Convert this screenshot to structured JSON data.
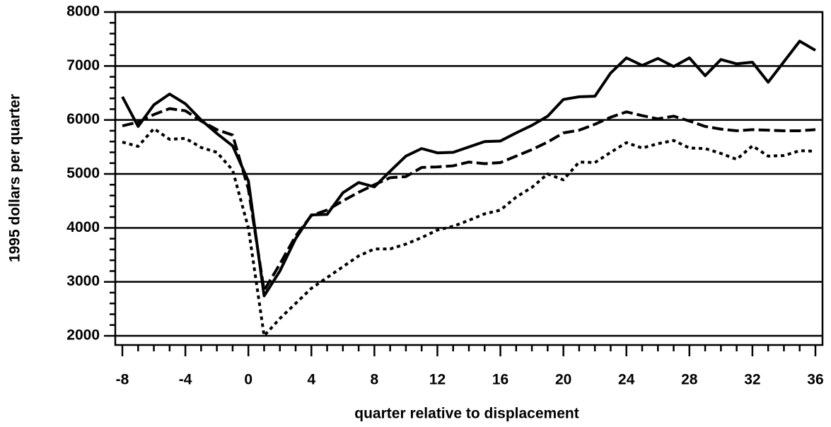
{
  "chart_data": {
    "type": "line",
    "xlabel": "quarter relative to displacement",
    "ylabel": "1995 dollars per quarter",
    "x": [
      -8,
      -7,
      -6,
      -5,
      -4,
      -3,
      -2,
      -1,
      0,
      1,
      2,
      3,
      4,
      5,
      6,
      7,
      8,
      9,
      10,
      11,
      12,
      13,
      14,
      15,
      16,
      17,
      18,
      19,
      20,
      21,
      22,
      23,
      24,
      25,
      26,
      27,
      28,
      29,
      30,
      31,
      32,
      33,
      34,
      35,
      36
    ],
    "series": [
      {
        "color": "#000000",
        "dash": "solid",
        "values": [
          6430,
          5880,
          6280,
          6480,
          6300,
          6000,
          5750,
          5520,
          4870,
          2740,
          3200,
          3800,
          4240,
          4250,
          4650,
          4840,
          4760,
          5050,
          5330,
          5470,
          5390,
          5400,
          5500,
          5600,
          5610,
          5760,
          5900,
          6070,
          6380,
          6430,
          6440,
          6870,
          7150,
          7010,
          7140,
          6990,
          7150,
          6820,
          7120,
          7040,
          7070,
          6700,
          7080,
          7460,
          7290
        ]
      },
      {
        "color": "#000000",
        "dash": "dashed",
        "values": [
          5890,
          5960,
          6100,
          6210,
          6170,
          5980,
          5820,
          5720,
          4720,
          2840,
          3330,
          3850,
          4230,
          4330,
          4500,
          4660,
          4800,
          4930,
          4950,
          5120,
          5130,
          5150,
          5220,
          5190,
          5210,
          5330,
          5450,
          5590,
          5760,
          5810,
          5920,
          6050,
          6150,
          6080,
          6020,
          6070,
          5980,
          5880,
          5830,
          5800,
          5820,
          5810,
          5800,
          5800,
          5820
        ]
      },
      {
        "color": "#000000",
        "dash": "dotted",
        "values": [
          5590,
          5510,
          5840,
          5640,
          5660,
          5490,
          5400,
          5070,
          4000,
          2000,
          2320,
          2600,
          2880,
          3080,
          3280,
          3480,
          3610,
          3610,
          3700,
          3820,
          3960,
          4030,
          4140,
          4260,
          4330,
          4570,
          4750,
          5000,
          4890,
          5220,
          5210,
          5400,
          5580,
          5480,
          5560,
          5620,
          5480,
          5470,
          5380,
          5270,
          5520,
          5330,
          5340,
          5430,
          5420
        ]
      }
    ],
    "xlim": [
      -8.45,
      36.45
    ],
    "xticks": [
      -8,
      -4,
      0,
      4,
      8,
      12,
      16,
      20,
      24,
      28,
      32,
      36
    ],
    "xminorticks": [
      -7,
      -6,
      -5,
      -3,
      -2,
      -1,
      1,
      2,
      3,
      5,
      6,
      7,
      9,
      10,
      11,
      13,
      14,
      15,
      17,
      18,
      19,
      21,
      22,
      23,
      25,
      26,
      27,
      29,
      30,
      31,
      33,
      34,
      35
    ],
    "ylim": [
      1830,
      8000
    ],
    "yticks": [
      2000,
      3000,
      4000,
      5000,
      6000,
      7000,
      8000
    ],
    "yminorticks": [
      2200,
      2400,
      2600,
      2800,
      3200,
      3400,
      3600,
      3800,
      4200,
      4400,
      4600,
      4800,
      5200,
      5400,
      5600,
      5800,
      6200,
      6400,
      6600,
      6800,
      7200,
      7400,
      7600,
      7800
    ],
    "grid": true
  }
}
